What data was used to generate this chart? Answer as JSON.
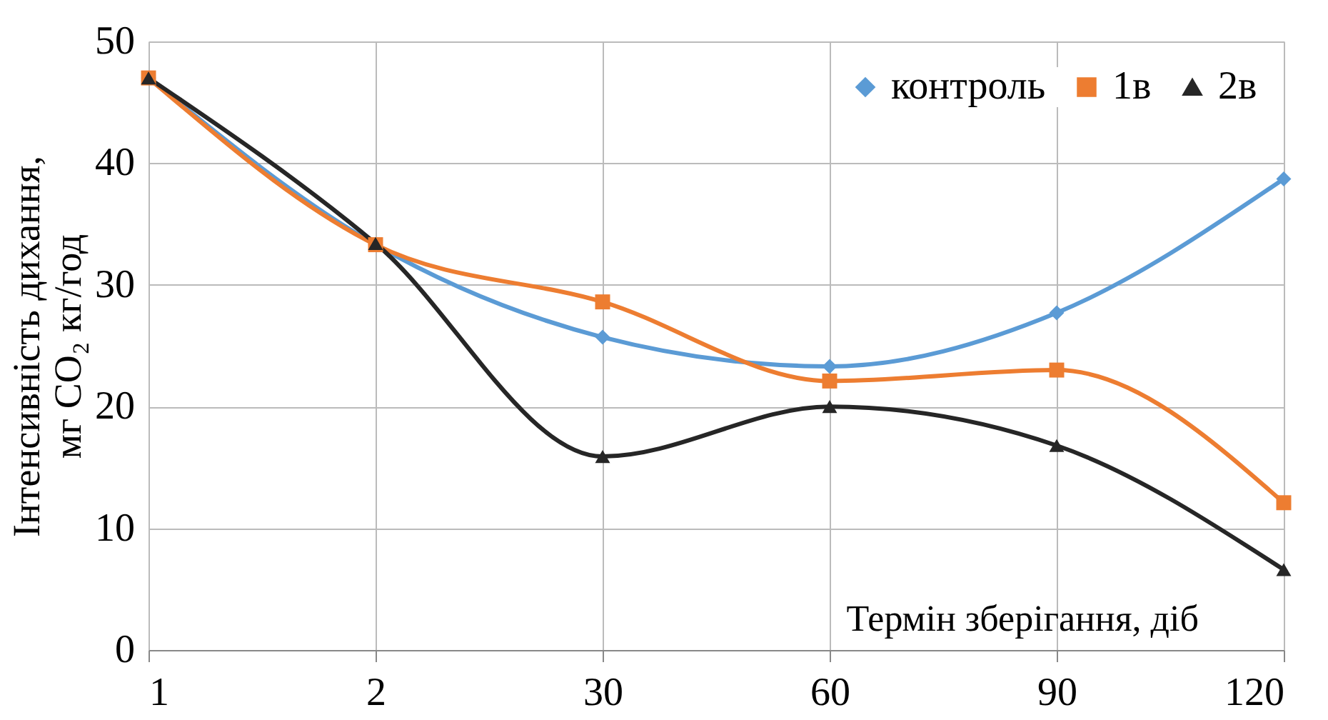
{
  "chart_data": {
    "type": "line",
    "xlabel": "Термін зберігання, діб",
    "ylabel": "Інтенсивність дихання, мг CO₂ кг/год",
    "categories": [
      "1",
      "2",
      "30",
      "60",
      "90",
      "120"
    ],
    "series": [
      {
        "name": "контроль",
        "color": "#5b9bd5",
        "marker": "diamond",
        "values": [
          47,
          33.3,
          25.7,
          23.3,
          27.7,
          38.7
        ]
      },
      {
        "name": "1в",
        "color": "#ed7d31",
        "marker": "square",
        "values": [
          47,
          33.3,
          28.6,
          22.1,
          23.0,
          12.1
        ]
      },
      {
        "name": "2в",
        "color": "#262626",
        "marker": "triangle",
        "values": [
          47,
          33.4,
          15.9,
          20.0,
          16.8,
          6.6
        ]
      }
    ],
    "ylim": [
      0,
      50
    ],
    "yticks": [
      0,
      10,
      20,
      30,
      40,
      50
    ],
    "grid": true,
    "legend": "top right",
    "line_style": "solid"
  }
}
